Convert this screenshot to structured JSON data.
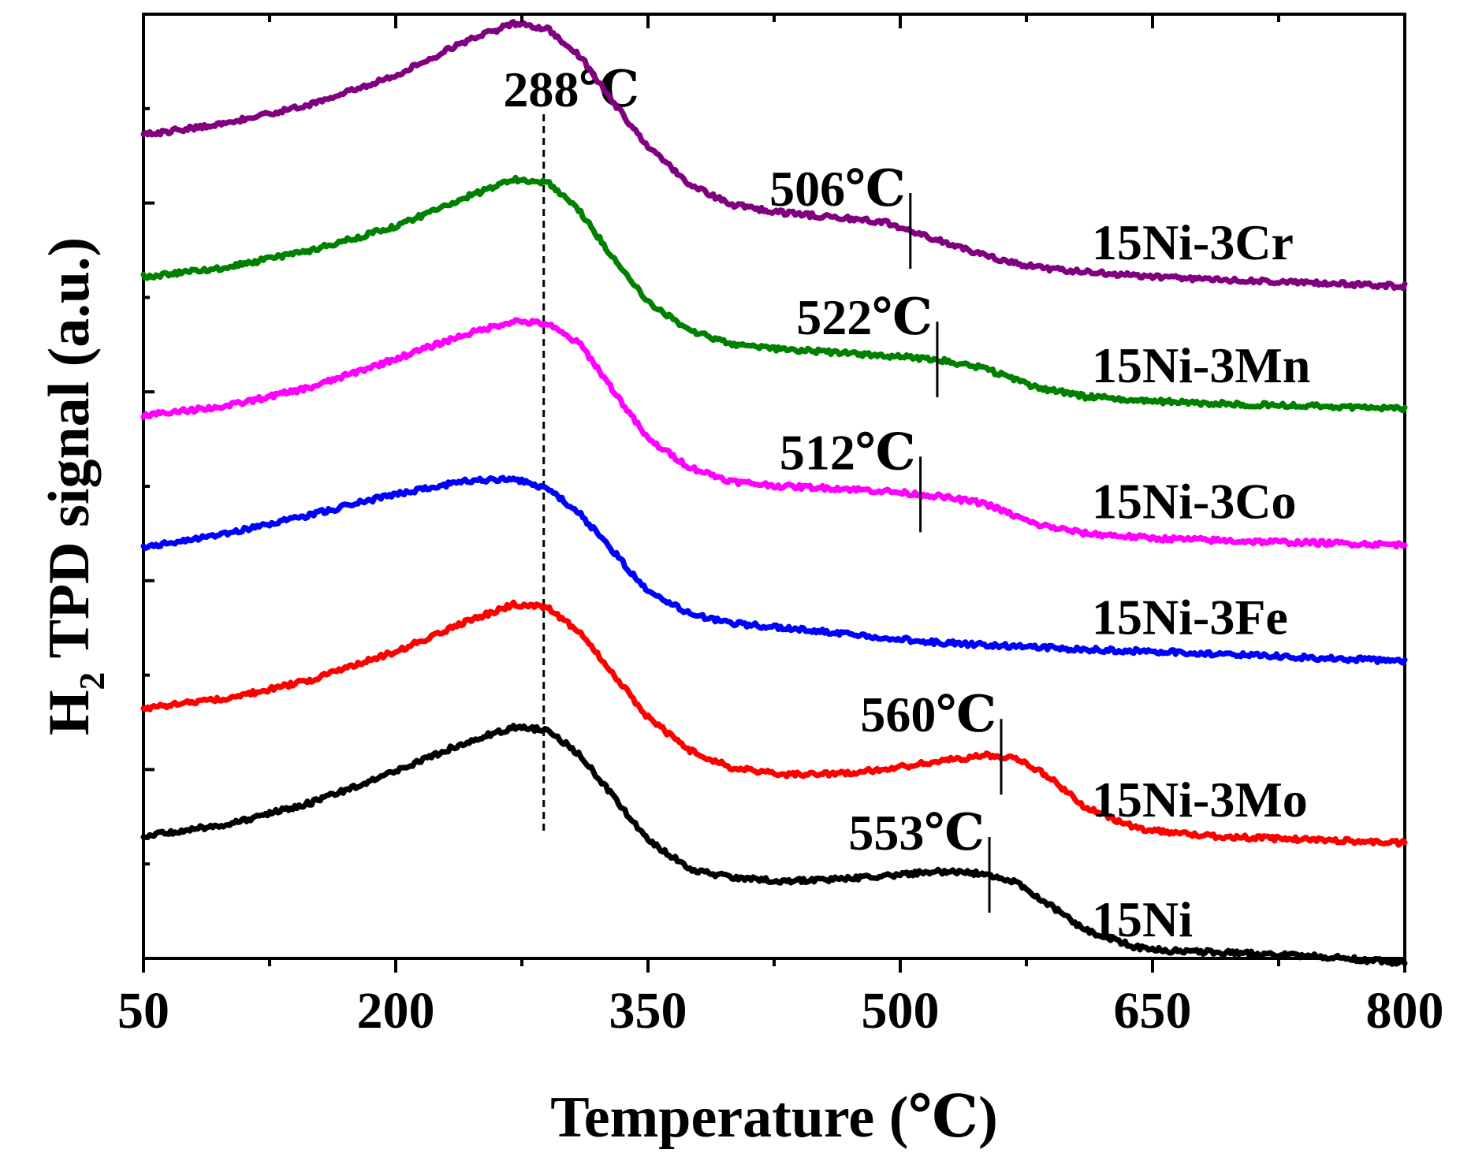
{
  "chart_data": {
    "type": "line",
    "title": "",
    "xlabel": "Temperature (℃)",
    "ylabel": "H2 TPD signal (a.u.)",
    "ylabel_main": "H",
    "ylabel_sub": "2",
    "ylabel_rest": " TPD signal (a.u.)",
    "xlim": [
      50,
      800
    ],
    "ylim": [
      0,
      10
    ],
    "xticks": [
      50,
      200,
      350,
      500,
      650,
      800
    ],
    "xtick_labels": [
      "50",
      "200",
      "350",
      "500",
      "650",
      "800"
    ],
    "grid": false,
    "reference_line": {
      "x": 288,
      "label": "288℃"
    },
    "series": [
      {
        "name": "15Ni-3Cr",
        "color": "#800080",
        "x": [
          50,
          100,
          150,
          200,
          240,
          270,
          290,
          310,
          330,
          350,
          375,
          400,
          430,
          460,
          490,
          510,
          540,
          570,
          600,
          650,
          700,
          750,
          800
        ],
        "y": [
          8.72,
          8.85,
          9.05,
          9.35,
          9.7,
          9.9,
          9.85,
          9.55,
          9.05,
          8.6,
          8.2,
          7.98,
          7.9,
          7.85,
          7.8,
          7.68,
          7.5,
          7.35,
          7.28,
          7.22,
          7.18,
          7.15,
          7.12
        ],
        "peak": {
          "x": 506,
          "label": "506℃"
        }
      },
      {
        "name": "15Ni-3Mn",
        "color": "#008000",
        "x": [
          50,
          100,
          150,
          200,
          240,
          270,
          290,
          310,
          330,
          350,
          375,
          400,
          430,
          460,
          490,
          520,
          550,
          580,
          610,
          650,
          700,
          750,
          800
        ],
        "y": [
          7.22,
          7.32,
          7.5,
          7.75,
          8.05,
          8.25,
          8.22,
          7.9,
          7.4,
          6.95,
          6.65,
          6.5,
          6.45,
          6.42,
          6.38,
          6.35,
          6.25,
          6.05,
          5.95,
          5.9,
          5.87,
          5.85,
          5.82
        ],
        "peak": {
          "x": 522,
          "label": "522℃"
        }
      },
      {
        "name": "15Ni-3Co",
        "color": "#ff00ff",
        "x": [
          50,
          100,
          150,
          200,
          240,
          270,
          290,
          310,
          330,
          350,
          375,
          400,
          430,
          460,
          490,
          520,
          550,
          580,
          610,
          650,
          700,
          750,
          800
        ],
        "y": [
          5.75,
          5.85,
          6.05,
          6.35,
          6.6,
          6.75,
          6.72,
          6.5,
          6.0,
          5.5,
          5.2,
          5.05,
          5.0,
          4.98,
          4.95,
          4.9,
          4.82,
          4.6,
          4.5,
          4.45,
          4.42,
          4.4,
          4.38
        ],
        "peak": {
          "x": 512,
          "label": "512℃"
        }
      },
      {
        "name": "15Ni-3Fe",
        "color": "#0000ff",
        "x": [
          50,
          100,
          150,
          200,
          240,
          270,
          290,
          310,
          330,
          350,
          375,
          400,
          430,
          460,
          490,
          520,
          550,
          600,
          650,
          700,
          750,
          800
        ],
        "y": [
          4.35,
          4.5,
          4.7,
          4.92,
          5.05,
          5.08,
          4.98,
          4.7,
          4.3,
          3.88,
          3.65,
          3.55,
          3.5,
          3.45,
          3.4,
          3.35,
          3.32,
          3.28,
          3.25,
          3.22,
          3.18,
          3.15
        ]
      },
      {
        "name": "15Ni-3Mo",
        "color": "#ff0000",
        "x": [
          50,
          100,
          150,
          200,
          240,
          270,
          290,
          310,
          330,
          350,
          375,
          400,
          430,
          460,
          490,
          520,
          550,
          570,
          590,
          610,
          640,
          680,
          720,
          760,
          800
        ],
        "y": [
          2.65,
          2.75,
          2.95,
          3.25,
          3.55,
          3.75,
          3.72,
          3.45,
          3.0,
          2.55,
          2.2,
          2.02,
          1.95,
          1.95,
          2.0,
          2.08,
          2.15,
          2.12,
          1.9,
          1.6,
          1.38,
          1.3,
          1.27,
          1.25,
          1.22
        ],
        "peak": {
          "x": 560,
          "label": "560℃"
        }
      },
      {
        "name": "15Ni",
        "color": "#000000",
        "x": [
          50,
          100,
          150,
          200,
          240,
          270,
          290,
          310,
          330,
          350,
          375,
          400,
          430,
          460,
          490,
          520,
          550,
          570,
          590,
          610,
          640,
          660,
          700,
          750,
          800
        ],
        "y": [
          1.3,
          1.42,
          1.65,
          1.98,
          2.28,
          2.45,
          2.42,
          2.15,
          1.7,
          1.25,
          0.95,
          0.85,
          0.82,
          0.84,
          0.87,
          0.92,
          0.9,
          0.8,
          0.55,
          0.3,
          0.12,
          0.08,
          0.06,
          0.02,
          -0.05
        ],
        "peak": {
          "x": 553,
          "label": "553℃"
        }
      }
    ]
  }
}
